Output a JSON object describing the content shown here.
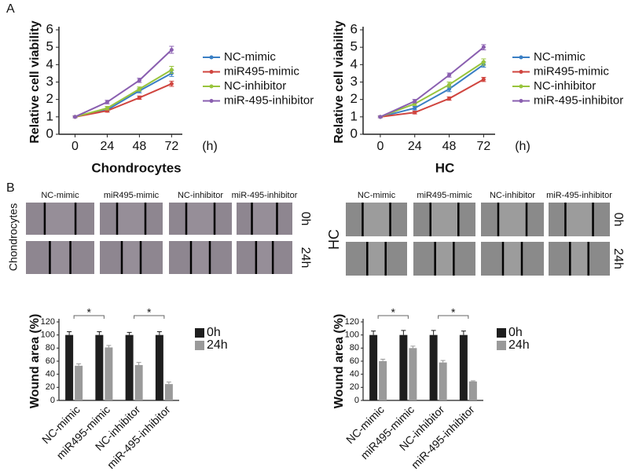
{
  "panel_labels": [
    "A",
    "B"
  ],
  "chart_data": [
    {
      "type": "line",
      "xlabel": "Chondrocytes",
      "ylabel": "Relative cell viability",
      "x_unit": "(h)",
      "x": [
        0,
        24,
        48,
        72
      ],
      "xlim": [
        -12,
        80
      ],
      "xticks": [
        0,
        24,
        48,
        72
      ],
      "ylim": [
        0,
        6
      ],
      "yticks": [
        0,
        1,
        2,
        3,
        4,
        5,
        6
      ],
      "series": [
        {
          "name": "NC-mimic",
          "color": "#3a7fc4",
          "values": [
            1,
            1.4,
            2.5,
            3.5
          ],
          "errors": [
            0.05,
            0.1,
            0.12,
            0.18
          ]
        },
        {
          "name": "miR495-mimic",
          "color": "#d0453f",
          "values": [
            1,
            1.35,
            2.1,
            2.9
          ],
          "errors": [
            0.05,
            0.08,
            0.1,
            0.15
          ]
        },
        {
          "name": "NC-inhibitor",
          "color": "#98c43c",
          "values": [
            1,
            1.5,
            2.6,
            3.7
          ],
          "errors": [
            0.05,
            0.1,
            0.12,
            0.2
          ]
        },
        {
          "name": "miR-495-inhibitor",
          "color": "#8a5fb0",
          "values": [
            1,
            1.85,
            3.1,
            4.85
          ],
          "errors": [
            0.05,
            0.1,
            0.12,
            0.2
          ]
        }
      ]
    },
    {
      "type": "line",
      "xlabel": "HC",
      "ylabel": "Relative cell viability",
      "x_unit": "(h)",
      "x": [
        0,
        24,
        48,
        72
      ],
      "xlim": [
        -12,
        80
      ],
      "xticks": [
        0,
        24,
        48,
        72
      ],
      "ylim": [
        0,
        6
      ],
      "yticks": [
        0,
        1,
        2,
        3,
        4,
        5,
        6
      ],
      "series": [
        {
          "name": "NC-mimic",
          "color": "#3a7fc4",
          "values": [
            1,
            1.5,
            2.6,
            4.0
          ],
          "errors": [
            0.05,
            0.1,
            0.15,
            0.15
          ]
        },
        {
          "name": "miR495-mimic",
          "color": "#d0453f",
          "values": [
            1,
            1.25,
            2.05,
            3.15
          ],
          "errors": [
            0.05,
            0.08,
            0.1,
            0.12
          ]
        },
        {
          "name": "NC-inhibitor",
          "color": "#98c43c",
          "values": [
            1,
            1.75,
            2.85,
            4.15
          ],
          "errors": [
            0.05,
            0.1,
            0.15,
            0.18
          ]
        },
        {
          "name": "miR-495-inhibitor",
          "color": "#8a5fb0",
          "values": [
            1,
            1.9,
            3.4,
            5.0
          ],
          "errors": [
            0.05,
            0.1,
            0.12,
            0.15
          ]
        }
      ]
    },
    {
      "type": "bar",
      "ylabel": "Wound area (%)",
      "categories": [
        "NC-mimic",
        "miR495-mimic",
        "NC-inhibitor",
        "miR-495-inhibitor"
      ],
      "ylim": [
        0,
        120
      ],
      "yticks": [
        0,
        20,
        40,
        60,
        80,
        100,
        120
      ],
      "series": [
        {
          "name": "0h",
          "color": "#1e1e1e",
          "values": [
            100,
            100,
            100,
            100
          ],
          "errors": [
            5,
            5,
            4,
            5
          ]
        },
        {
          "name": "24h",
          "color": "#9a9a9a",
          "values": [
            53,
            81,
            54,
            25
          ],
          "errors": [
            3,
            3,
            4,
            3
          ]
        }
      ],
      "annotations": [
        "*",
        "*"
      ]
    },
    {
      "type": "bar",
      "ylabel": "Wound area (%)",
      "categories": [
        "NC-mimic",
        "miR495-mimic",
        "NC-inhibitor",
        "miR-495-inhibitor"
      ],
      "ylim": [
        0,
        120
      ],
      "yticks": [
        0,
        20,
        40,
        60,
        80,
        100,
        120
      ],
      "series": [
        {
          "name": "0h",
          "color": "#1e1e1e",
          "values": [
            100,
            100,
            100,
            100
          ],
          "errors": [
            6,
            7,
            7,
            6
          ]
        },
        {
          "name": "24h",
          "color": "#9a9a9a",
          "values": [
            60,
            80,
            58,
            29
          ],
          "errors": [
            3,
            3,
            3,
            1
          ]
        }
      ],
      "annotations": [
        "*",
        "*"
      ]
    }
  ],
  "wound_images": [
    {
      "label": "Chondrocytes",
      "columns": [
        "NC-mimic",
        "miR495-mimic",
        "NC-inhibitor",
        "miR-495-inhibitor"
      ],
      "rows": [
        "0h",
        "24h"
      ]
    },
    {
      "label": "HC",
      "columns": [
        "NC-mimic",
        "miR495-mimic",
        "NC-inhibitor",
        "miR-495-inhibitor"
      ],
      "rows": [
        "0h",
        "24h"
      ]
    }
  ]
}
